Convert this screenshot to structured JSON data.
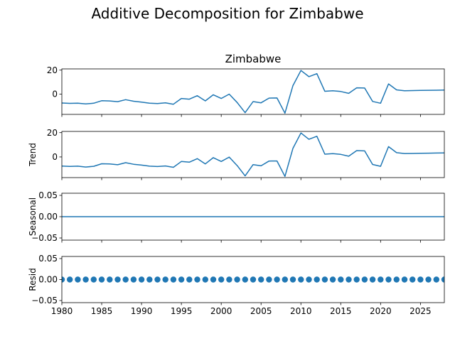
{
  "chart_data": {
    "type": "line",
    "title": "Additive Decomposition for Zimbabwe",
    "subtitle": "Zimbabwe",
    "xlabel": "",
    "xlim": [
      1980,
      2028
    ],
    "xticks": [
      1980,
      1985,
      1990,
      1995,
      2000,
      2005,
      2010,
      2015,
      2020,
      2025
    ],
    "x": [
      1980,
      1981,
      1982,
      1983,
      1984,
      1985,
      1986,
      1987,
      1988,
      1989,
      1990,
      1991,
      1992,
      1993,
      1994,
      1995,
      1996,
      1997,
      1998,
      1999,
      2000,
      2001,
      2002,
      2003,
      2004,
      2005,
      2006,
      2007,
      2008,
      2009,
      2010,
      2011,
      2012,
      2013,
      2014,
      2015,
      2016,
      2017,
      2018,
      2019,
      2020,
      2021,
      2022,
      2023,
      2024,
      2025,
      2026,
      2027,
      2028
    ],
    "panels": [
      {
        "name": "observed",
        "ylabel": "",
        "kind": "line",
        "ylim": [
          -17,
          21
        ],
        "yticks": [
          20,
          0
        ],
        "values": [
          -7.5,
          -7.8,
          -7.6,
          -8.3,
          -7.7,
          -5.6,
          -5.8,
          -6.4,
          -4.7,
          -6.0,
          -6.7,
          -7.6,
          -7.9,
          -7.4,
          -8.5,
          -3.7,
          -4.3,
          -1.4,
          -5.7,
          -0.6,
          -3.7,
          -0.1,
          -7.1,
          -15.6,
          -6.3,
          -7.3,
          -3.4,
          -3.3,
          -16.0,
          7.0,
          19.7,
          14.5,
          17.0,
          2.3,
          2.7,
          2.1,
          0.6,
          5.2,
          5.0,
          -6.2,
          -7.7,
          8.5,
          3.5,
          2.8,
          2.9,
          3.0,
          3.1,
          3.2,
          3.3
        ]
      },
      {
        "name": "trend",
        "ylabel": "Trend",
        "kind": "line",
        "ylim": [
          -17,
          21
        ],
        "yticks": [
          20,
          0
        ],
        "values": [
          -7.5,
          -7.8,
          -7.6,
          -8.3,
          -7.7,
          -5.6,
          -5.8,
          -6.4,
          -4.7,
          -6.0,
          -6.7,
          -7.6,
          -7.9,
          -7.4,
          -8.5,
          -3.7,
          -4.3,
          -1.4,
          -5.7,
          -0.6,
          -3.7,
          -0.1,
          -7.1,
          -15.6,
          -6.3,
          -7.3,
          -3.4,
          -3.3,
          -16.0,
          7.0,
          19.7,
          14.5,
          17.0,
          2.3,
          2.7,
          2.1,
          0.6,
          5.2,
          5.0,
          -6.2,
          -7.7,
          8.5,
          3.5,
          2.8,
          2.9,
          3.0,
          3.1,
          3.2,
          3.3
        ]
      },
      {
        "name": "seasonal",
        "ylabel": "Seasonal",
        "kind": "line",
        "ylim": [
          -0.055,
          0.055
        ],
        "yticks": [
          0.05,
          0.0,
          -0.05
        ],
        "yticklabels": [
          "0.05",
          "0.00",
          "−0.05"
        ],
        "values": [
          0,
          0,
          0,
          0,
          0,
          0,
          0,
          0,
          0,
          0,
          0,
          0,
          0,
          0,
          0,
          0,
          0,
          0,
          0,
          0,
          0,
          0,
          0,
          0,
          0,
          0,
          0,
          0,
          0,
          0,
          0,
          0,
          0,
          0,
          0,
          0,
          0,
          0,
          0,
          0,
          0,
          0,
          0,
          0,
          0,
          0,
          0,
          0,
          0
        ]
      },
      {
        "name": "resid",
        "ylabel": "Resid",
        "kind": "scatter",
        "ylim": [
          -0.055,
          0.055
        ],
        "yticks": [
          0.05,
          0.0,
          -0.05
        ],
        "yticklabels": [
          "0.05",
          "0.00",
          "−0.05"
        ],
        "values": [
          0,
          0,
          0,
          0,
          0,
          0,
          0,
          0,
          0,
          0,
          0,
          0,
          0,
          0,
          0,
          0,
          0,
          0,
          0,
          0,
          0,
          0,
          0,
          0,
          0,
          0,
          0,
          0,
          0,
          0,
          0,
          0,
          0,
          0,
          0,
          0,
          0,
          0,
          0,
          0,
          0,
          0,
          0,
          0,
          0,
          0,
          0,
          0,
          0
        ]
      }
    ],
    "grid": false,
    "legend": "none",
    "color": "#1f77b4"
  }
}
